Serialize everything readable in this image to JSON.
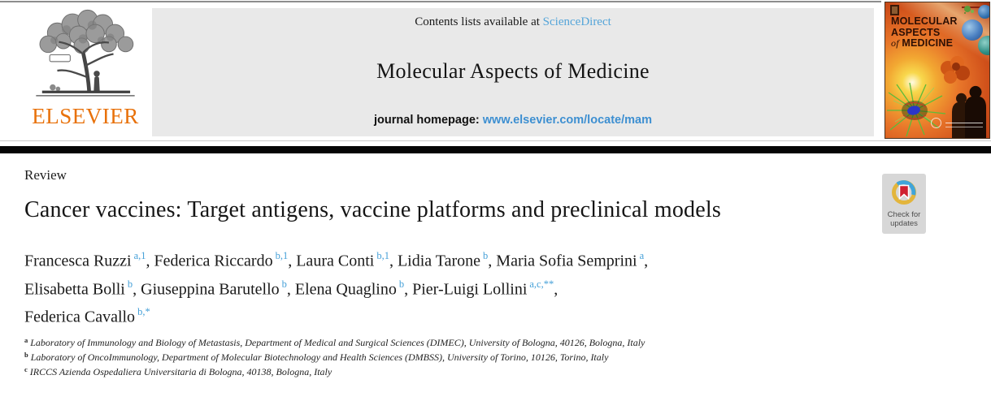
{
  "masthead": {
    "contents_prefix": "Contents lists available at ",
    "contents_link": "ScienceDirect",
    "journal_title": "Molecular Aspects of Medicine",
    "homepage_label": "journal homepage: ",
    "homepage_url": "www.elsevier.com/locate/mam",
    "publisher_wordmark": "ELSEVIER"
  },
  "cover": {
    "title_line1": "MOLECULAR",
    "title_line2": "ASPECTS",
    "title_line3_of": "of",
    "title_line3_rest": " MEDICINE"
  },
  "article": {
    "section_label": "Review",
    "title": "Cancer vaccines: Target antigens, vaccine platforms and preclinical models",
    "badge": {
      "line1": "Check for",
      "line2": "updates"
    },
    "author_lines": [
      {
        "authors": [
          {
            "name": "Francesca Ruzzi",
            "sup": "a,1"
          },
          {
            "name": "Federica Riccardo",
            "sup": "b,1"
          },
          {
            "name": "Laura Conti",
            "sup": "b,1"
          },
          {
            "name": "Lidia Tarone",
            "sup": "b"
          },
          {
            "name": "Maria Sofia Semprini",
            "sup": "a"
          }
        ],
        "trailing": ","
      },
      {
        "authors": [
          {
            "name": "Elisabetta Bolli",
            "sup": "b"
          },
          {
            "name": "Giuseppina Barutello",
            "sup": "b"
          },
          {
            "name": "Elena Quaglino",
            "sup": "b"
          },
          {
            "name": "Pier-Luigi Lollini",
            "sup": "a,c,**"
          }
        ],
        "trailing": ","
      },
      {
        "authors": [
          {
            "name": "Federica Cavallo",
            "sup": "b,*"
          }
        ],
        "trailing": ""
      }
    ],
    "affiliations": [
      {
        "sup": "a",
        "text": "Laboratory of Immunology and Biology of Metastasis, Department of Medical and Surgical Sciences (DIMEC), University of Bologna, 40126, Bologna, Italy"
      },
      {
        "sup": "b",
        "text": "Laboratory of OncoImmunology, Department of Molecular Biotechnology and Health Sciences (DMBSS), University of Torino, 10126, Torino, Italy"
      },
      {
        "sup": "c",
        "text": "IRCCS Azienda Ospedaliera Universitaria di Bologna, 40138, Bologna, Italy"
      }
    ]
  },
  "colors": {
    "elsevier_orange": "#e8710a",
    "sciencedirect_link": "#55a5d9",
    "homepage_link": "#3d8fd1",
    "superscript_blue": "#45a0d8",
    "masthead_bg": "#e9e9e9",
    "divider_black": "#050505"
  }
}
